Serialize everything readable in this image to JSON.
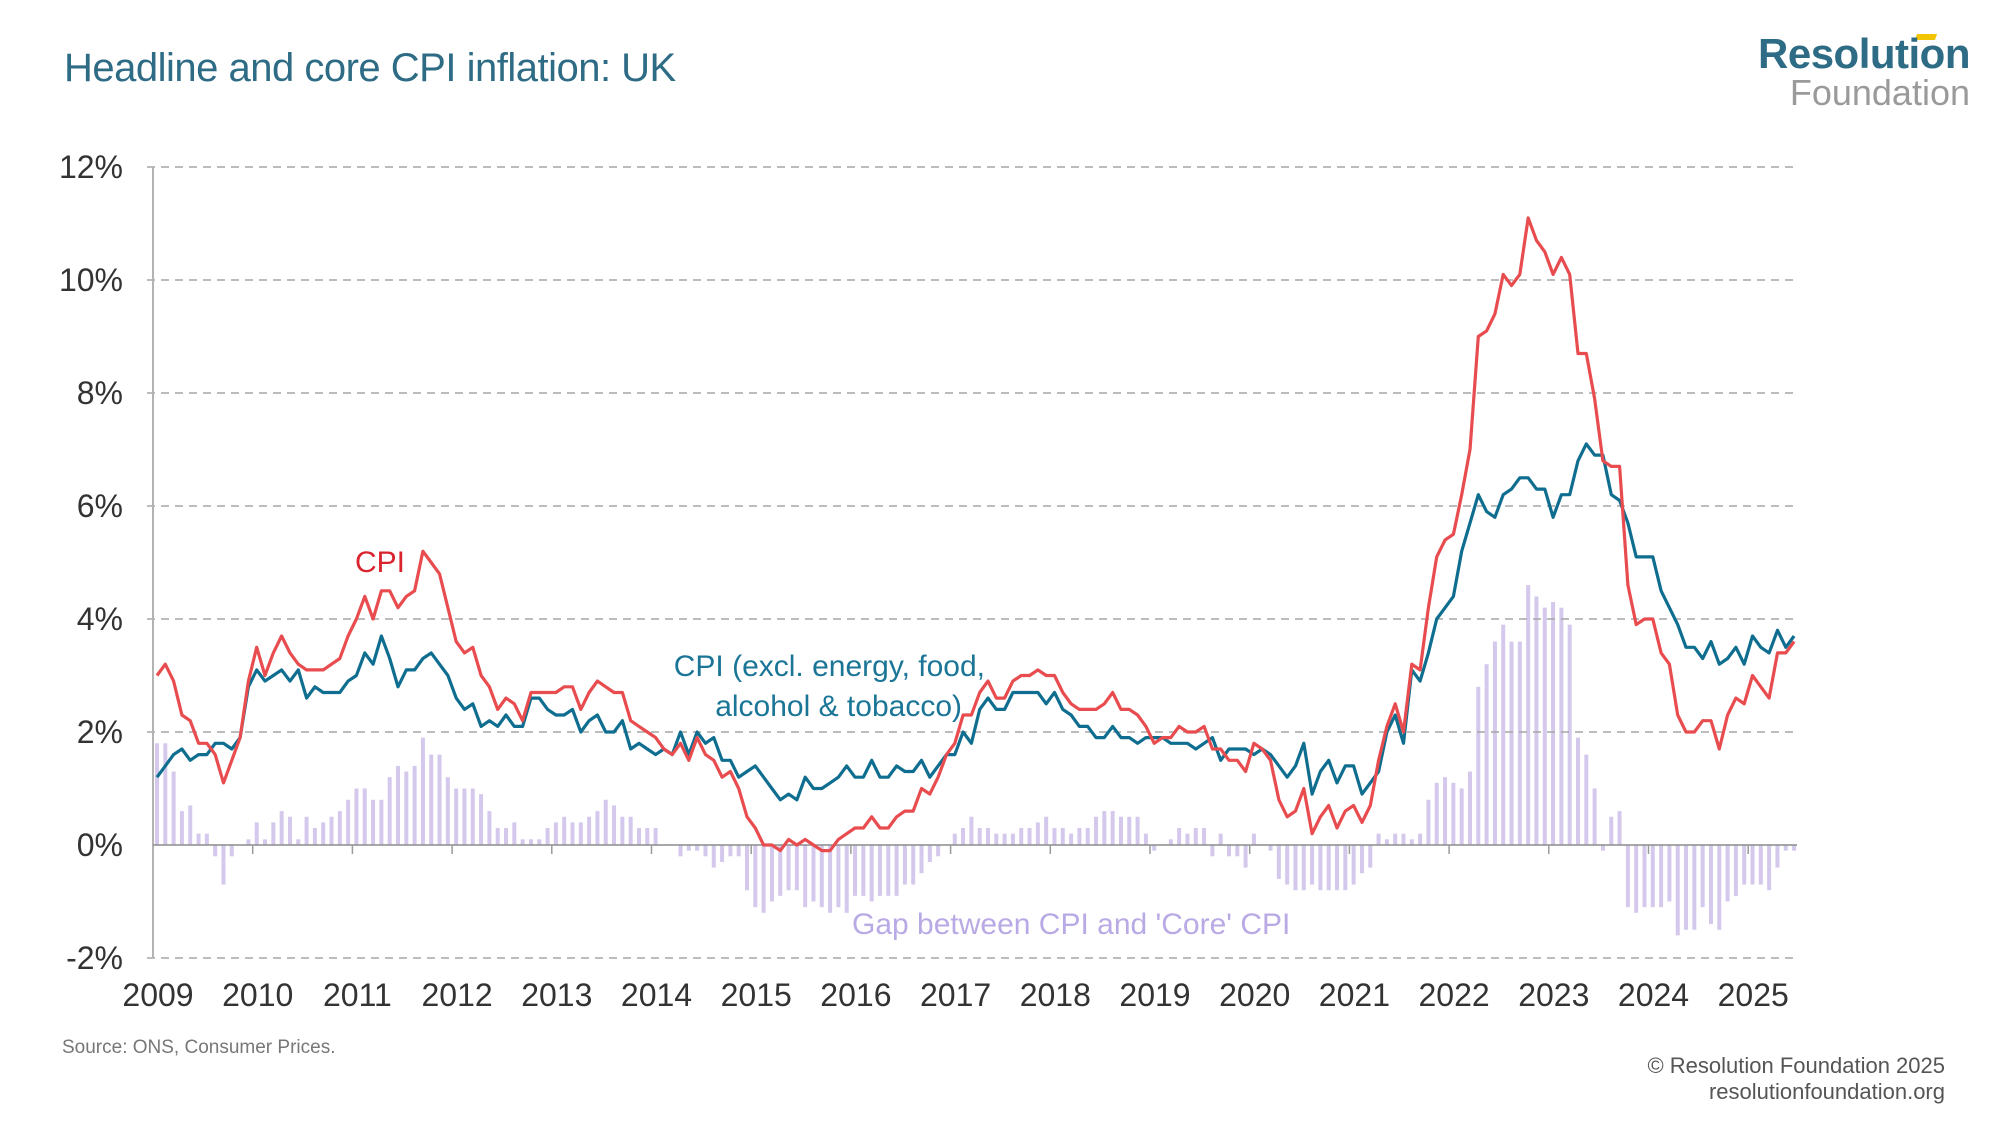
{
  "header": {
    "title": "Headline and core CPI inflation: UK",
    "logo_top": "Resolution",
    "logo_bottom": "Foundation"
  },
  "footer": {
    "source": "Source: ONS, Consumer Prices.",
    "copyright": "© Resolution Foundation 2025",
    "website": "resolutionfoundation.org"
  },
  "colors": {
    "cpi": "#e84c4f",
    "core": "#0f6e8f",
    "gap": "#d4c8ec",
    "title": "#2e6b85",
    "logo_accent": "#f2c500"
  },
  "chart_data": {
    "type": "line",
    "title": "Headline and core CPI inflation: UK",
    "xlabel": "",
    "ylabel": "",
    "x_start": "2009-01",
    "x_end": "2025-06",
    "frequency": "monthly",
    "ylim": [
      -2,
      12
    ],
    "yticks": [
      -2,
      0,
      2,
      4,
      6,
      8,
      10,
      12
    ],
    "ytick_labels": [
      "-2%",
      "0%",
      "2%",
      "4%",
      "6%",
      "8%",
      "10%",
      "12%"
    ],
    "xtick_labels": [
      "2009",
      "2010",
      "2011",
      "2012",
      "2013",
      "2014",
      "2015",
      "2016",
      "2017",
      "2018",
      "2019",
      "2020",
      "2021",
      "2022",
      "2023",
      "2024",
      "2025"
    ],
    "grid": "horizontal-dashed",
    "annotations": {
      "cpi": "CPI",
      "core_line1": "CPI (excl. energy, food,",
      "core_line2": "alcohol & tobacco)",
      "gap": "Gap between CPI and 'Core' CPI"
    },
    "series": [
      {
        "name": "CPI",
        "kind": "line",
        "values": [
          3.0,
          3.2,
          2.9,
          2.3,
          2.2,
          1.8,
          1.8,
          1.6,
          1.1,
          1.5,
          1.9,
          2.9,
          3.5,
          3.0,
          3.4,
          3.7,
          3.4,
          3.2,
          3.1,
          3.1,
          3.1,
          3.2,
          3.3,
          3.7,
          4.0,
          4.4,
          4.0,
          4.5,
          4.5,
          4.2,
          4.4,
          4.5,
          5.2,
          5.0,
          4.8,
          4.2,
          3.6,
          3.4,
          3.5,
          3.0,
          2.8,
          2.4,
          2.6,
          2.5,
          2.2,
          2.7,
          2.7,
          2.7,
          2.7,
          2.8,
          2.8,
          2.4,
          2.7,
          2.9,
          2.8,
          2.7,
          2.7,
          2.2,
          2.1,
          2.0,
          1.9,
          1.7,
          1.6,
          1.8,
          1.5,
          1.9,
          1.6,
          1.5,
          1.2,
          1.3,
          1.0,
          0.5,
          0.3,
          0.0,
          0.0,
          -0.1,
          0.1,
          0.0,
          0.1,
          0.0,
          -0.1,
          -0.1,
          0.1,
          0.2,
          0.3,
          0.3,
          0.5,
          0.3,
          0.3,
          0.5,
          0.6,
          0.6,
          1.0,
          0.9,
          1.2,
          1.6,
          1.8,
          2.3,
          2.3,
          2.7,
          2.9,
          2.6,
          2.6,
          2.9,
          3.0,
          3.0,
          3.1,
          3.0,
          3.0,
          2.7,
          2.5,
          2.4,
          2.4,
          2.4,
          2.5,
          2.7,
          2.4,
          2.4,
          2.3,
          2.1,
          1.8,
          1.9,
          1.9,
          2.1,
          2.0,
          2.0,
          2.1,
          1.7,
          1.7,
          1.5,
          1.5,
          1.3,
          1.8,
          1.7,
          1.5,
          0.8,
          0.5,
          0.6,
          1.0,
          0.2,
          0.5,
          0.7,
          0.3,
          0.6,
          0.7,
          0.4,
          0.7,
          1.5,
          2.1,
          2.5,
          2.0,
          3.2,
          3.1,
          4.2,
          5.1,
          5.4,
          5.5,
          6.2,
          7.0,
          9.0,
          9.1,
          9.4,
          10.1,
          9.9,
          10.1,
          11.1,
          10.7,
          10.5,
          10.1,
          10.4,
          10.1,
          8.7,
          8.7,
          7.9,
          6.8,
          6.7,
          6.7,
          4.6,
          3.9,
          4.0,
          4.0,
          3.4,
          3.2,
          2.3,
          2.0,
          2.0,
          2.2,
          2.2,
          1.7,
          2.3,
          2.6,
          2.5,
          3.0,
          2.8,
          2.6,
          3.4,
          3.4,
          3.6
        ]
      },
      {
        "name": "CPI (excl. energy, food, alcohol & tobacco)",
        "kind": "line",
        "values": [
          1.2,
          1.4,
          1.6,
          1.7,
          1.5,
          1.6,
          1.6,
          1.8,
          1.8,
          1.7,
          1.9,
          2.8,
          3.1,
          2.9,
          3.0,
          3.1,
          2.9,
          3.1,
          2.6,
          2.8,
          2.7,
          2.7,
          2.7,
          2.9,
          3.0,
          3.4,
          3.2,
          3.7,
          3.3,
          2.8,
          3.1,
          3.1,
          3.3,
          3.4,
          3.2,
          3.0,
          2.6,
          2.4,
          2.5,
          2.1,
          2.2,
          2.1,
          2.3,
          2.1,
          2.1,
          2.6,
          2.6,
          2.4,
          2.3,
          2.3,
          2.4,
          2.0,
          2.2,
          2.3,
          2.0,
          2.0,
          2.2,
          1.7,
          1.8,
          1.7,
          1.6,
          1.7,
          1.6,
          2.0,
          1.6,
          2.0,
          1.8,
          1.9,
          1.5,
          1.5,
          1.2,
          1.3,
          1.4,
          1.2,
          1.0,
          0.8,
          0.9,
          0.8,
          1.2,
          1.0,
          1.0,
          1.1,
          1.2,
          1.4,
          1.2,
          1.2,
          1.5,
          1.2,
          1.2,
          1.4,
          1.3,
          1.3,
          1.5,
          1.2,
          1.4,
          1.6,
          1.6,
          2.0,
          1.8,
          2.4,
          2.6,
          2.4,
          2.4,
          2.7,
          2.7,
          2.7,
          2.7,
          2.5,
          2.7,
          2.4,
          2.3,
          2.1,
          2.1,
          1.9,
          1.9,
          2.1,
          1.9,
          1.9,
          1.8,
          1.9,
          1.9,
          1.9,
          1.8,
          1.8,
          1.8,
          1.7,
          1.8,
          1.9,
          1.5,
          1.7,
          1.7,
          1.7,
          1.6,
          1.7,
          1.6,
          1.4,
          1.2,
          1.4,
          1.8,
          0.9,
          1.3,
          1.5,
          1.1,
          1.4,
          1.4,
          0.9,
          1.1,
          1.3,
          2.0,
          2.3,
          1.8,
          3.1,
          2.9,
          3.4,
          4.0,
          4.2,
          4.4,
          5.2,
          5.7,
          6.2,
          5.9,
          5.8,
          6.2,
          6.3,
          6.5,
          6.5,
          6.3,
          6.3,
          5.8,
          6.2,
          6.2,
          6.8,
          7.1,
          6.9,
          6.9,
          6.2,
          6.1,
          5.7,
          5.1,
          5.1,
          5.1,
          4.5,
          4.2,
          3.9,
          3.5,
          3.5,
          3.3,
          3.6,
          3.2,
          3.3,
          3.5,
          3.2,
          3.7,
          3.5,
          3.4,
          3.8,
          3.5,
          3.7
        ]
      },
      {
        "name": "Gap between CPI and 'Core' CPI",
        "kind": "bar",
        "derived": "CPI minus Core CPI"
      }
    ]
  }
}
